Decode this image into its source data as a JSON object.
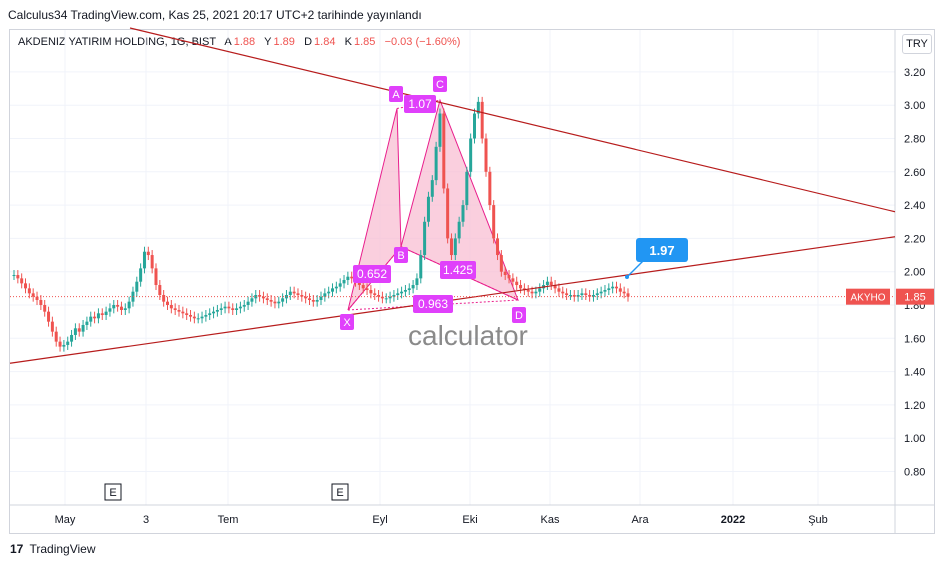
{
  "header": {
    "text": "Calculus34 TradingView.com, Kas 25, 2021 20:17 UTC+2 tarihinde yayınlandı"
  },
  "legend": {
    "symbol": "AKDENIZ YATIRIM HOLDING, 1G, BIST",
    "a_label": "A",
    "a_value": "1.88",
    "y_label": "Y",
    "y_value": "1.89",
    "d_label": "D",
    "d_value": "1.84",
    "k_label": "K",
    "k_value": "1.85",
    "change": "−0.03 (−1.60%)"
  },
  "currency_button": "TRY",
  "watermark": "calculator",
  "footer": {
    "logo": "17",
    "brand": "TradingView"
  },
  "colors": {
    "up": "#26a69a",
    "down": "#ef5350",
    "trendline": "#b71c1c",
    "pattern": "#e91e8c",
    "pattern_fill": "#f8bbd0",
    "callout": "#2196f3"
  },
  "chart_data": {
    "type": "candlestick",
    "title": "",
    "ylim": [
      0.6,
      3.3
    ],
    "y_ticks": [
      "3.20",
      "3.00",
      "2.80",
      "2.60",
      "2.40",
      "2.20",
      "2.00",
      "1.80",
      "1.60",
      "1.40",
      "1.20",
      "1.00",
      "0.80"
    ],
    "x_ticks": [
      "May",
      "3",
      "Tem",
      "Eyl",
      "Eki",
      "Kas",
      "Ara",
      "2022",
      "Şub"
    ],
    "last_price": {
      "symbol": "AKYHO",
      "value": "1.85"
    },
    "earnings_markers": [
      "E",
      "E"
    ],
    "close_series": [
      1.98,
      1.96,
      1.93,
      1.9,
      1.87,
      1.85,
      1.83,
      1.8,
      1.76,
      1.7,
      1.64,
      1.58,
      1.55,
      1.56,
      1.58,
      1.62,
      1.66,
      1.64,
      1.68,
      1.7,
      1.73,
      1.72,
      1.75,
      1.74,
      1.76,
      1.78,
      1.8,
      1.79,
      1.77,
      1.78,
      1.82,
      1.88,
      1.94,
      2.02,
      2.12,
      2.1,
      2.02,
      1.92,
      1.86,
      1.82,
      1.8,
      1.78,
      1.77,
      1.76,
      1.75,
      1.74,
      1.73,
      1.72,
      1.72,
      1.73,
      1.74,
      1.75,
      1.76,
      1.77,
      1.78,
      1.79,
      1.78,
      1.77,
      1.78,
      1.79,
      1.8,
      1.82,
      1.84,
      1.86,
      1.85,
      1.84,
      1.83,
      1.82,
      1.81,
      1.82,
      1.84,
      1.86,
      1.88,
      1.87,
      1.86,
      1.85,
      1.84,
      1.83,
      1.82,
      1.83,
      1.85,
      1.87,
      1.88,
      1.9,
      1.91,
      1.93,
      1.95,
      1.97,
      1.96,
      1.94,
      1.92,
      1.9,
      1.89,
      1.87,
      1.86,
      1.85,
      1.84,
      1.84,
      1.85,
      1.86,
      1.87,
      1.88,
      1.89,
      1.9,
      1.92,
      1.96,
      2.1,
      2.3,
      2.45,
      2.55,
      2.75,
      2.95,
      2.5,
      2.2,
      2.1,
      2.2,
      2.3,
      2.4,
      2.6,
      2.8,
      2.95,
      3.02,
      2.8,
      2.6,
      2.4,
      2.2,
      2.1,
      2.0,
      1.98,
      1.96,
      1.94,
      1.92,
      1.9,
      1.89,
      1.88,
      1.87,
      1.88,
      1.9,
      1.92,
      1.94,
      1.92,
      1.9,
      1.88,
      1.87,
      1.86,
      1.86,
      1.85,
      1.86,
      1.87,
      1.86,
      1.85,
      1.86,
      1.87,
      1.88,
      1.89,
      1.9,
      1.91,
      1.9,
      1.88,
      1.87,
      1.85
    ],
    "trendlines": [
      {
        "from": {
          "i": -5,
          "y": 1.45
        },
        "to": {
          "i": 395,
          "y": 2.21
        }
      },
      {
        "from": {
          "i": 68,
          "y": 3.55
        },
        "to": {
          "i": 395,
          "y": 2.36
        }
      }
    ],
    "harmonic_pattern": {
      "points": [
        {
          "label": "X",
          "i": 158,
          "y": 1.77
        },
        {
          "label": "A",
          "i": 183,
          "y": 2.98
        },
        {
          "label": "B",
          "i": 186,
          "y": 2.15
        },
        {
          "label": "C",
          "i": 202,
          "y": 3.03
        },
        {
          "label": "D",
          "i": 240,
          "y": 1.83
        }
      ],
      "ratios": [
        {
          "label": "0.652",
          "at": "XB"
        },
        {
          "label": "1.07",
          "at": "AC"
        },
        {
          "label": "1.425",
          "at": "BD"
        },
        {
          "label": "0.963",
          "at": "XD"
        }
      ]
    },
    "callout": {
      "label": "1.97",
      "y": 1.97
    }
  }
}
